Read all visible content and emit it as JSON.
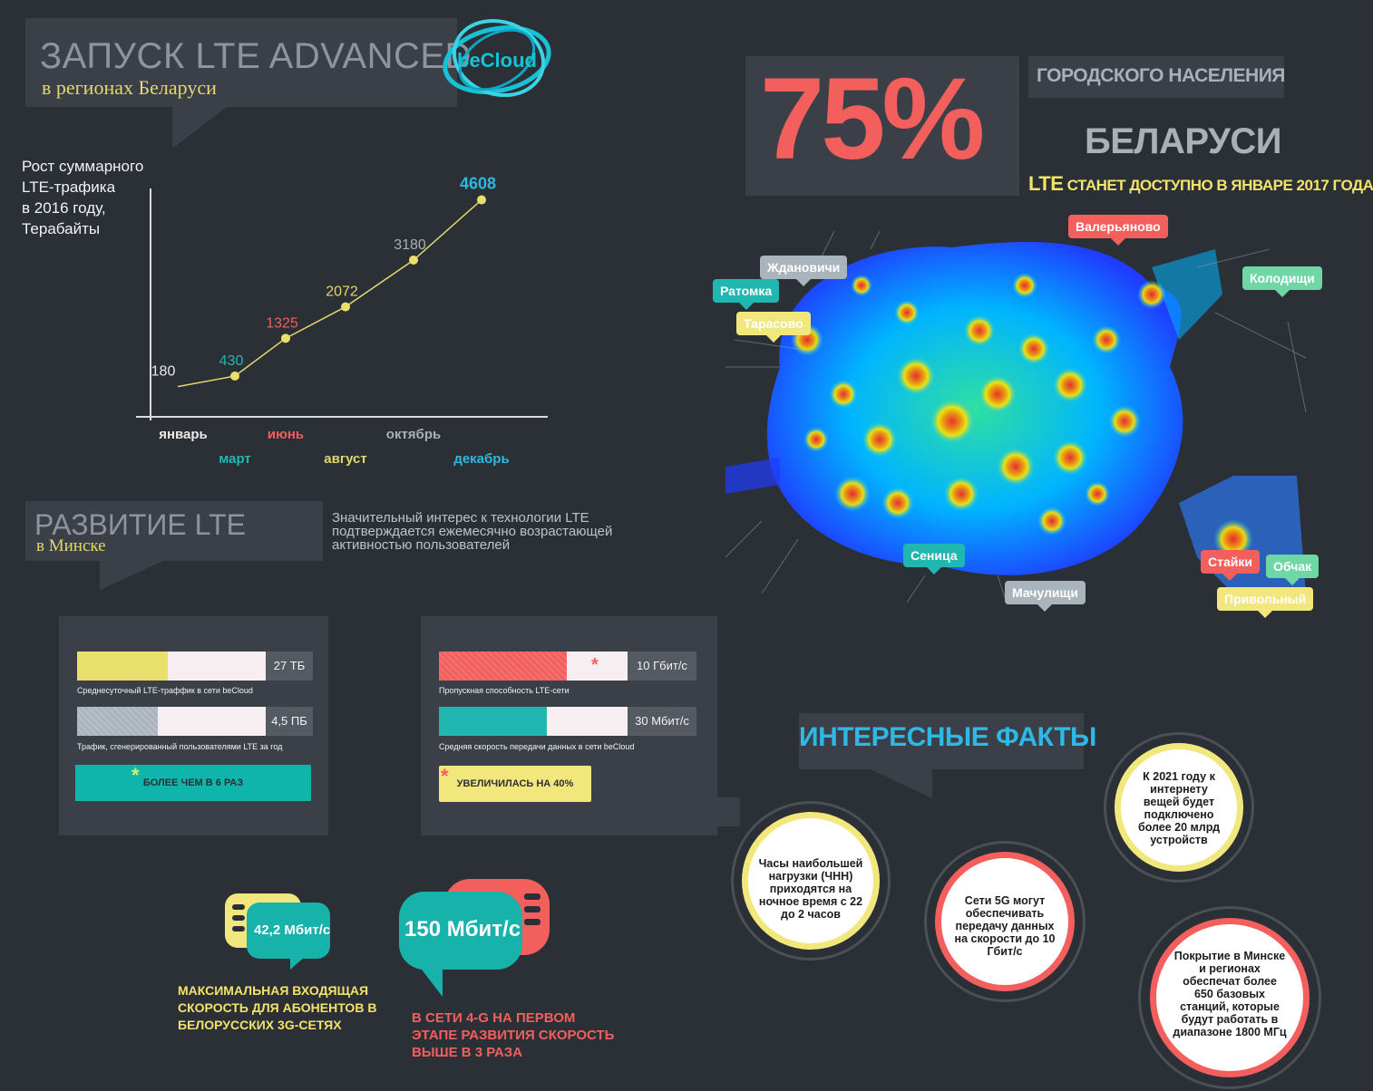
{
  "header": {
    "title": "ЗАПУСК LTE ADVANCED",
    "subtitle": "в регионах Беларуси",
    "logo_text": "beCloud"
  },
  "chart_data": {
    "type": "line",
    "title": "Рост суммарного\nLTE-трафика\nв 2016 году,\nТерабайты",
    "categories": [
      "январь",
      "март",
      "июнь",
      "август",
      "октябрь",
      "декабрь"
    ],
    "values": [
      180,
      430,
      1325,
      2072,
      3180,
      4608
    ],
    "value_label_colors": [
      "#e8e8e8",
      "#1fb7b0",
      "#f25f5c",
      "#e2d86c",
      "#aab0b8",
      "#2fb7e6"
    ],
    "category_label_colors": [
      "#e8e8e8",
      "#1fb7b0",
      "#f25f5c",
      "#e2d86c",
      "#aab0b8",
      "#2fb7e6"
    ],
    "ylim": [
      0,
      5200
    ],
    "grid": false
  },
  "section2": {
    "title": "РАЗВИТИЕ LTE",
    "subtitle": "в Минске",
    "description": "Значительный интерес к технологии LTE подтверждается ежемесячно возрастающей активностью пользователей"
  },
  "panel_left": {
    "bars": [
      {
        "label": "Среднесуточный LTE-траффик в сети beCloud",
        "value": "27 ТБ",
        "fill": 0.48,
        "color": "#e8e06a"
      },
      {
        "label": "Трафик, сгенерированный пользователями LTE за год",
        "value": "4,5 ПБ",
        "fill": 0.43,
        "color": "#aab4bc"
      }
    ],
    "badge": "БОЛЕЕ ЧЕМ В 6 РАЗ",
    "asterisk": "*"
  },
  "panel_right": {
    "bars": [
      {
        "label": "Пропускная способность LTE-сети",
        "value": "10 Гбит/с",
        "fill": 0.68,
        "color": "#f25f5c"
      },
      {
        "label": "Средняя скорость передачи данных в сети beCloud",
        "value": "30 Мбит/с",
        "fill": 0.57,
        "color": "#1fb7b0"
      }
    ],
    "badge": "УВЕЛИЧИЛАСЬ НА 40%",
    "asterisk": "*"
  },
  "speed_left": {
    "value": "42,2 Мбит/с",
    "note": "МАКСИМАЛЬНАЯ ВХОДЯЩАЯ\nСКОРОСТЬ ДЛЯ АБОНЕНТОВ В\nБЕЛОРУССКИХ 3G-СЕТЯХ"
  },
  "speed_right": {
    "value": "150 Мбит/с",
    "note": "В СЕТИ 4-G  НА ПЕРВОМ\nЭТАПЕ РАЗВИТИЯ СКОРОСТЬ\nВЫШЕ В 3 РАЗА"
  },
  "stat": {
    "percent": "75%",
    "heading": "ГОРОДСКОГО НАСЕЛЕНИЯ",
    "country": "БЕЛАРУСИ",
    "lte_word": "LTE",
    "availability": "СТАНЕТ ДОСТУПНО В ЯНВАРЕ 2017 ГОДА"
  },
  "map_tags": [
    {
      "name": "Валерьяново",
      "color": "#f25f5c",
      "text_color": "#ffffff"
    },
    {
      "name": "Ждановичи",
      "color": "#aab4bc",
      "text_color": "#ffffff"
    },
    {
      "name": "Ратомка",
      "color": "#1fb7b0",
      "text_color": "#ffffff"
    },
    {
      "name": "Колодищи",
      "color": "#6fd6a6",
      "text_color": "#ffffff"
    },
    {
      "name": "Тарасово",
      "color": "#f2e77c",
      "text_color": "#ffffff"
    },
    {
      "name": "Сеница",
      "color": "#1fb7b0",
      "text_color": "#ffffff"
    },
    {
      "name": "Мачулищи",
      "color": "#aab4bc",
      "text_color": "#ffffff"
    },
    {
      "name": "Стайки",
      "color": "#f25f5c",
      "text_color": "#ffffff"
    },
    {
      "name": "Обчак",
      "color": "#6fd6a6",
      "text_color": "#ffffff"
    },
    {
      "name": "Привольный",
      "color": "#f2e77c",
      "text_color": "#ffffff"
    }
  ],
  "facts": {
    "title": "ИНТЕРЕСНЫЕ ФАКТЫ",
    "items": [
      {
        "text": "Часы наибольшей нагрузки (ЧНН) приходятся на ночное время с 22 до 2 часов",
        "ring": "#f2e77c"
      },
      {
        "text": "Сети 5G могут обеспечивать передачу данных на скорости до 10 Гбит/с",
        "ring": "#f25f5c"
      },
      {
        "text": "К 2021 году к интернету вещей будет подключено более 20 млрд устройств",
        "ring": "#f2e77c"
      },
      {
        "text": "Покрытие в Минске и регионах обеспечат более 650 базовых станций, которые будут работать в диапазоне 1800 МГц",
        "ring": "#f25f5c"
      }
    ]
  }
}
